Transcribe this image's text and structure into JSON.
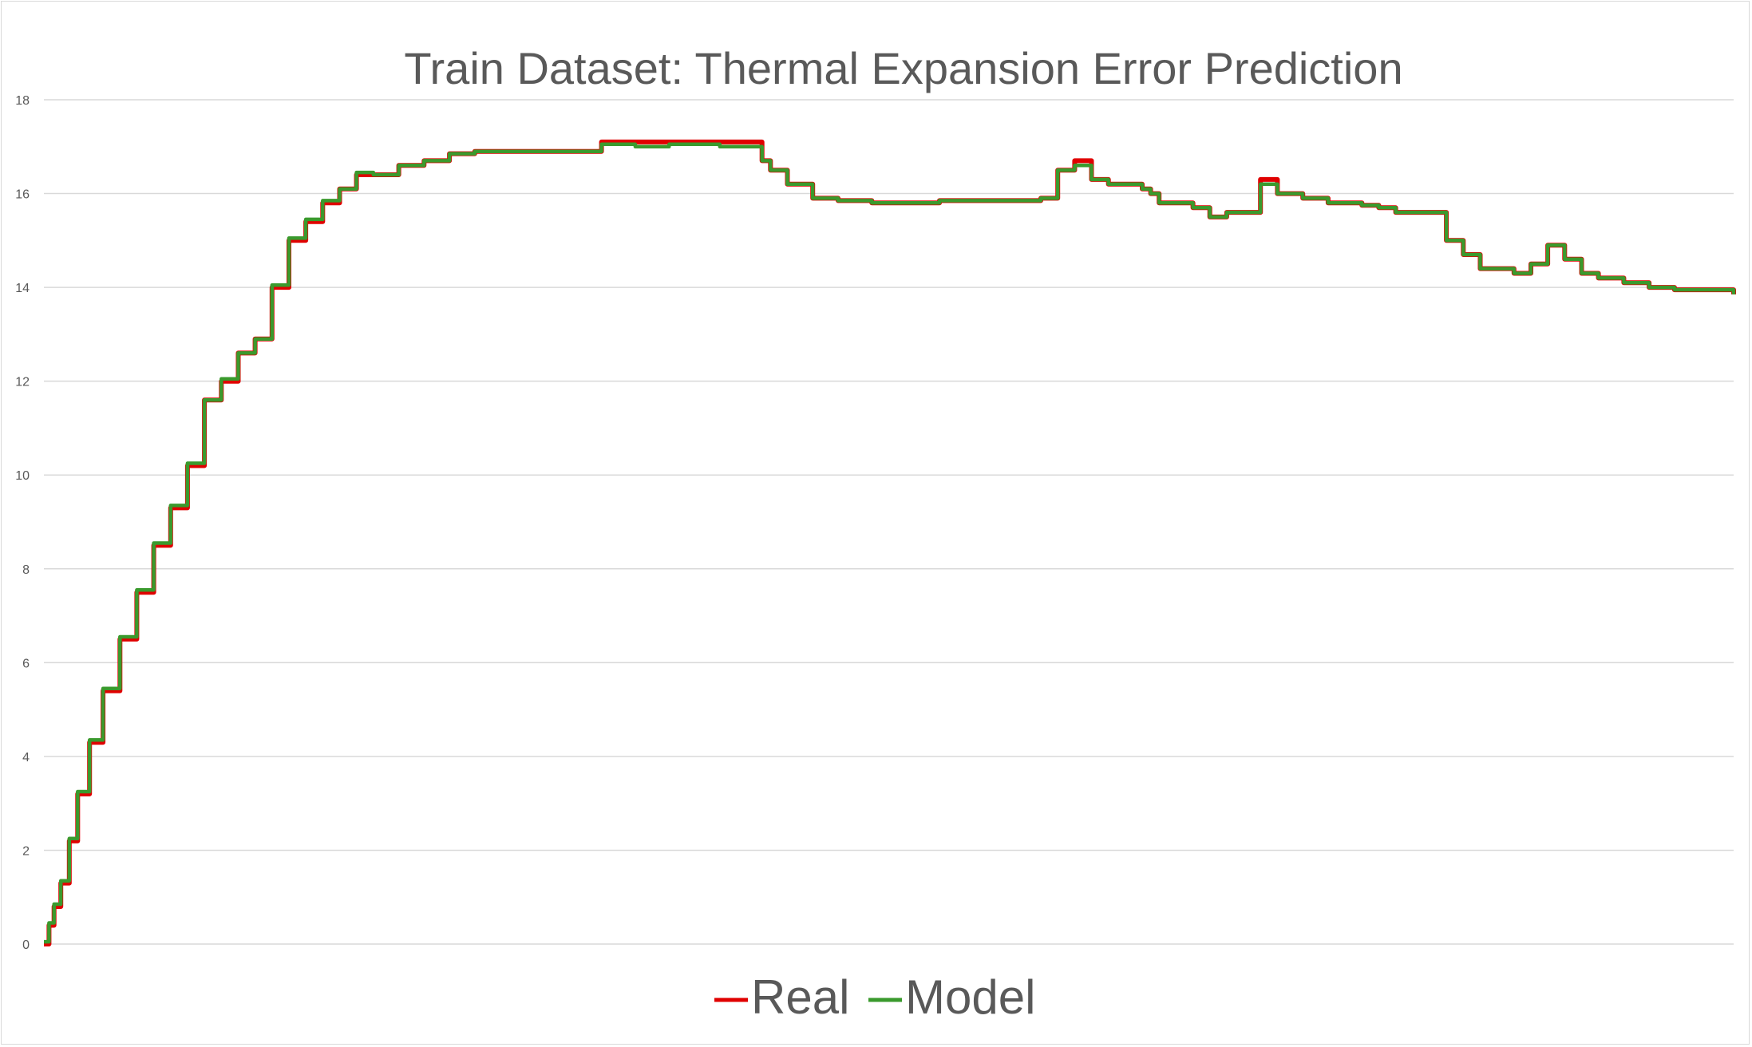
{
  "chart_data": {
    "type": "line",
    "title": "Train Dataset: Thermal Expansion Error Prediction",
    "xlabel": "",
    "ylabel": "",
    "ylim": [
      0,
      18
    ],
    "yticks": [
      "0",
      "2",
      "4",
      "6",
      "8",
      "10",
      "12",
      "14",
      "16",
      "18"
    ],
    "x_tick_labels_shown": false,
    "grid": true,
    "legend_position": "bottom",
    "xlim": [
      0,
      1000
    ],
    "series": [
      {
        "name": "Real",
        "color": "#e00000",
        "x": [
          0,
          3,
          6,
          10,
          15,
          20,
          27,
          35,
          45,
          55,
          65,
          75,
          85,
          95,
          105,
          115,
          125,
          135,
          145,
          155,
          165,
          175,
          185,
          195,
          210,
          225,
          240,
          255,
          270,
          285,
          300,
          315,
          330,
          350,
          370,
          390,
          400,
          410,
          420,
          425,
          430,
          440,
          455,
          470,
          490,
          510,
          530,
          560,
          590,
          600,
          610,
          620,
          630,
          640,
          650,
          655,
          660,
          670,
          680,
          690,
          700,
          710,
          720,
          730,
          745,
          760,
          780,
          790,
          800,
          815,
          830,
          840,
          850,
          860,
          870,
          880,
          890,
          900,
          910,
          920,
          935,
          950,
          965,
          980,
          1000
        ],
        "y": [
          0,
          0.4,
          0.8,
          1.3,
          2.2,
          3.2,
          4.3,
          5.4,
          6.5,
          7.5,
          8.5,
          9.3,
          10.2,
          11.6,
          12.0,
          12.6,
          12.9,
          14.0,
          15.0,
          15.4,
          15.8,
          16.1,
          16.4,
          16.4,
          16.6,
          16.7,
          16.85,
          16.9,
          16.9,
          16.9,
          16.9,
          16.9,
          17.1,
          17.1,
          17.1,
          17.1,
          17.1,
          17.1,
          17.1,
          16.7,
          16.5,
          16.2,
          15.9,
          15.85,
          15.8,
          15.8,
          15.85,
          15.85,
          15.9,
          16.5,
          16.7,
          16.3,
          16.2,
          16.2,
          16.1,
          16.0,
          15.8,
          15.8,
          15.7,
          15.5,
          15.6,
          15.6,
          16.3,
          16.0,
          15.9,
          15.8,
          15.75,
          15.7,
          15.6,
          15.6,
          15.0,
          14.7,
          14.4,
          14.4,
          14.3,
          14.5,
          14.9,
          14.6,
          14.3,
          14.2,
          14.1,
          14.0,
          13.95,
          13.95,
          13.85
        ]
      },
      {
        "name": "Model",
        "color": "#3a9a2d",
        "x": [
          0,
          3,
          6,
          10,
          15,
          20,
          27,
          35,
          45,
          55,
          65,
          75,
          85,
          95,
          105,
          115,
          125,
          135,
          145,
          155,
          165,
          175,
          185,
          195,
          210,
          225,
          240,
          255,
          270,
          285,
          300,
          315,
          330,
          350,
          370,
          390,
          400,
          410,
          420,
          425,
          430,
          440,
          455,
          470,
          490,
          510,
          530,
          560,
          590,
          600,
          610,
          620,
          630,
          640,
          650,
          655,
          660,
          670,
          680,
          690,
          700,
          710,
          720,
          730,
          745,
          760,
          780,
          790,
          800,
          815,
          830,
          840,
          850,
          860,
          870,
          880,
          890,
          900,
          910,
          920,
          935,
          950,
          965,
          980,
          1000
        ],
        "y": [
          0.05,
          0.45,
          0.85,
          1.35,
          2.25,
          3.25,
          4.35,
          5.45,
          6.55,
          7.55,
          8.55,
          9.35,
          10.25,
          11.6,
          12.05,
          12.6,
          12.9,
          14.05,
          15.05,
          15.45,
          15.85,
          16.1,
          16.45,
          16.4,
          16.6,
          16.7,
          16.85,
          16.9,
          16.9,
          16.9,
          16.9,
          16.9,
          17.05,
          17.0,
          17.05,
          17.05,
          17.0,
          17.0,
          17.0,
          16.7,
          16.5,
          16.2,
          15.9,
          15.85,
          15.8,
          15.8,
          15.85,
          15.85,
          15.9,
          16.5,
          16.6,
          16.3,
          16.2,
          16.2,
          16.1,
          16.0,
          15.8,
          15.8,
          15.7,
          15.5,
          15.6,
          15.6,
          16.2,
          16.0,
          15.9,
          15.8,
          15.75,
          15.7,
          15.6,
          15.6,
          15.0,
          14.7,
          14.4,
          14.4,
          14.3,
          14.5,
          14.9,
          14.6,
          14.3,
          14.2,
          14.1,
          14.0,
          13.95,
          13.95,
          13.85
        ]
      }
    ]
  }
}
